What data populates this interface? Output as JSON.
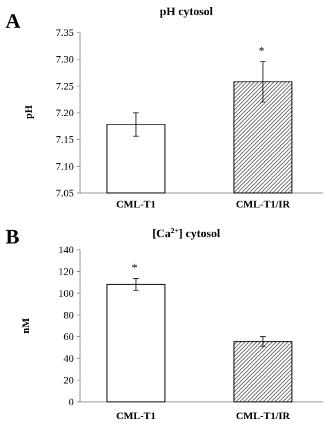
{
  "chart_data": [
    {
      "panel": "A",
      "type": "bar",
      "title": "pH cytosol",
      "ylabel": "pH",
      "xlabel": "",
      "categories": [
        "CML-T1",
        "CML-T1/IR"
      ],
      "values": [
        7.178,
        7.258
      ],
      "errors": [
        0.022,
        0.038
      ],
      "significance": [
        "",
        "*"
      ],
      "ylim": [
        7.05,
        7.35
      ],
      "yticks": [
        "7.05",
        "7.10",
        "7.15",
        "7.20",
        "7.25",
        "7.30",
        "7.35"
      ],
      "bar_fills": [
        "plain",
        "hatched"
      ],
      "grid": false,
      "legend": "none"
    },
    {
      "panel": "B",
      "type": "bar",
      "title": "[Ca2+] cytosol",
      "title_parts": {
        "before": "[Ca",
        "sup": "2+",
        "after": "] cytosol"
      },
      "ylabel": "nM",
      "xlabel": "",
      "categories": [
        "CML-T1",
        "CML-T1/IR"
      ],
      "values": [
        108,
        55.5
      ],
      "errors": [
        5.5,
        4.5
      ],
      "significance": [
        "*",
        ""
      ],
      "ylim": [
        0,
        140
      ],
      "yticks": [
        "0",
        "20",
        "40",
        "60",
        "80",
        "100",
        "120",
        "140"
      ],
      "bar_fills": [
        "plain",
        "hatched"
      ],
      "grid": false,
      "legend": "none"
    }
  ],
  "colors": {
    "bar_plain": "#ffffff",
    "bar_hatch_bg": "#ffffff",
    "bar_hatch_line": "#555555",
    "axis": "#808080"
  }
}
